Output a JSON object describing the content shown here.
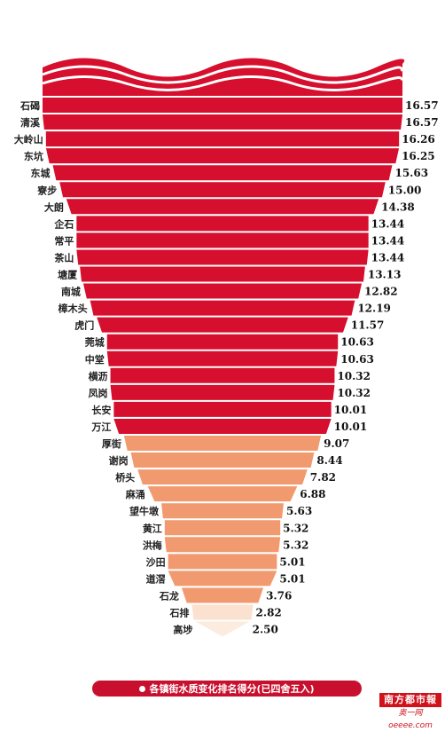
{
  "chart_data": {
    "type": "bar",
    "title": "各镇街水质变化排名得分(已四舍五入)",
    "categories": [
      "石碣",
      "清溪",
      "大岭山",
      "东坑",
      "东城",
      "寮步",
      "大朗",
      "企石",
      "常平",
      "茶山",
      "塘厦",
      "南城",
      "樟木头",
      "虎门",
      "莞城",
      "中堂",
      "横沥",
      "凤岗",
      "长安",
      "万江",
      "厚街",
      "谢岗",
      "桥头",
      "麻涌",
      "望牛墩",
      "黄江",
      "洪梅",
      "沙田",
      "道滘",
      "石龙",
      "石排",
      "高埗"
    ],
    "values": [
      16.57,
      16.57,
      16.26,
      16.25,
      15.63,
      15.0,
      14.38,
      13.44,
      13.44,
      13.44,
      13.13,
      12.82,
      12.19,
      11.57,
      10.63,
      10.63,
      10.32,
      10.32,
      10.01,
      10.01,
      9.07,
      8.44,
      7.82,
      6.88,
      5.63,
      5.32,
      5.32,
      5.01,
      5.01,
      3.76,
      2.82,
      2.5
    ],
    "value_labels": [
      "16.57",
      "16.57",
      "16.26",
      "16.25",
      "15.63",
      "15.00",
      "14.38",
      "13.44",
      "13.44",
      "13.44",
      "13.13",
      "12.82",
      "12.19",
      "11.57",
      "10.63",
      "10.63",
      "10.32",
      "10.32",
      "10.01",
      "10.01",
      "9.07",
      "8.44",
      "7.82",
      "6.88",
      "5.63",
      "5.32",
      "5.32",
      "5.01",
      "5.01",
      "3.76",
      "2.82",
      "2.50"
    ],
    "colors": {
      "high": "#d50f2d",
      "mid": "#f29a6f",
      "low": "#fbe1cf",
      "lowest": "#fcecdf"
    },
    "legend": "bottom-center"
  },
  "watermark": {
    "top": "南方都市報",
    "bottom": "奥一网oeeee.com"
  }
}
